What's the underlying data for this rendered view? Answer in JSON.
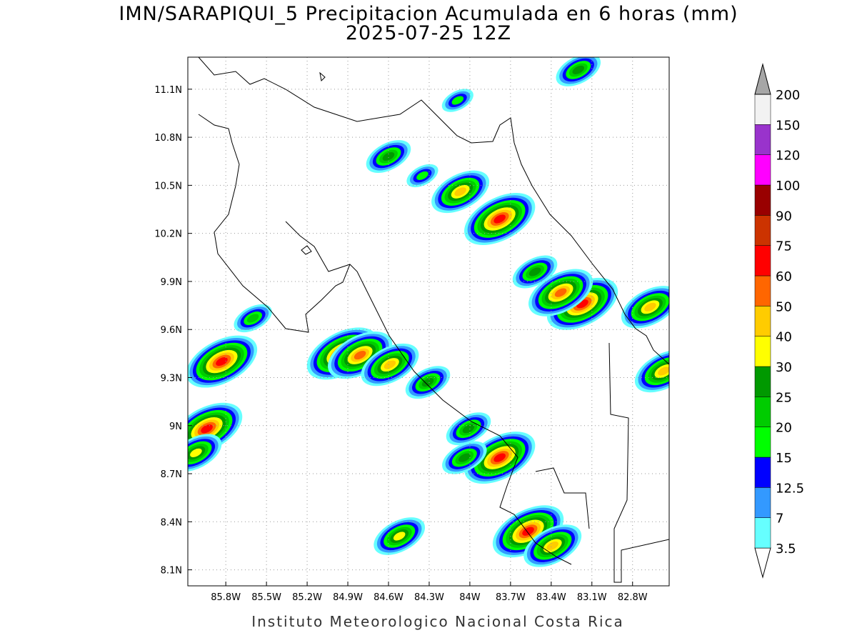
{
  "map": {
    "title": "IMN/SARAPIQUI_5 Precipitacion Acumulada en 6 horas (mm)",
    "subtitle": "2025-07-25 12Z",
    "footer": "Instituto Meteorologico Nacional Costa Rica",
    "lonlim": [
      -86.08,
      -82.53
    ],
    "latlim": [
      8.0,
      11.3
    ],
    "grid": true,
    "lat_ticks": [
      {
        "value": 8.1,
        "label": "8.1N"
      },
      {
        "value": 8.4,
        "label": "8.4N"
      },
      {
        "value": 8.7,
        "label": "8.7N"
      },
      {
        "value": 9.0,
        "label": "9N"
      },
      {
        "value": 9.3,
        "label": "9.3N"
      },
      {
        "value": 9.6,
        "label": "9.6N"
      },
      {
        "value": 9.9,
        "label": "9.9N"
      },
      {
        "value": 10.2,
        "label": "10.2N"
      },
      {
        "value": 10.5,
        "label": "10.5N"
      },
      {
        "value": 10.8,
        "label": "10.8N"
      },
      {
        "value": 11.1,
        "label": "11.1N"
      }
    ],
    "lon_ticks": [
      {
        "value": -85.8,
        "label": "85.8W"
      },
      {
        "value": -85.5,
        "label": "85.5W"
      },
      {
        "value": -85.2,
        "label": "85.2W"
      },
      {
        "value": -84.9,
        "label": "84.9W"
      },
      {
        "value": -84.6,
        "label": "84.6W"
      },
      {
        "value": -84.3,
        "label": "84.3W"
      },
      {
        "value": -84.0,
        "label": "84W"
      },
      {
        "value": -83.7,
        "label": "83.7W"
      },
      {
        "value": -83.4,
        "label": "83.4W"
      },
      {
        "value": -83.1,
        "label": "83.1W"
      },
      {
        "value": -82.8,
        "label": "82.8W"
      }
    ],
    "colorbar": {
      "levels": [
        3.5,
        7,
        12.5,
        15,
        20,
        25,
        30,
        40,
        50,
        60,
        75,
        90,
        100,
        120,
        150,
        200
      ],
      "colors": [
        "#ffffff",
        "#66ffff",
        "#3399ff",
        "#0000ff",
        "#00ff00",
        "#00cc00",
        "#009900",
        "#ffff00",
        "#ffcc00",
        "#ff6600",
        "#ff0000",
        "#cc3300",
        "#990000",
        "#ff00ff",
        "#9933cc",
        "#f2f2f2",
        "#a6a6a6"
      ]
    },
    "precip_cells": [
      {
        "lon": -83.78,
        "lat": 10.29,
        "peak": 60
      },
      {
        "lon": -84.07,
        "lat": 10.46,
        "peak": 40
      },
      {
        "lon": -83.17,
        "lat": 9.76,
        "peak": 60
      },
      {
        "lon": -83.33,
        "lat": 9.83,
        "peak": 50
      },
      {
        "lon": -82.67,
        "lat": 9.74,
        "peak": 40
      },
      {
        "lon": -82.57,
        "lat": 9.34,
        "peak": 40
      },
      {
        "lon": -85.83,
        "lat": 9.4,
        "peak": 60
      },
      {
        "lon": -85.94,
        "lat": 8.98,
        "peak": 60
      },
      {
        "lon": -84.94,
        "lat": 9.45,
        "peak": 60
      },
      {
        "lon": -84.81,
        "lat": 9.44,
        "peak": 50
      },
      {
        "lon": -84.59,
        "lat": 9.38,
        "peak": 40
      },
      {
        "lon": -83.78,
        "lat": 8.8,
        "peak": 60
      },
      {
        "lon": -84.04,
        "lat": 8.8,
        "peak": 25
      },
      {
        "lon": -83.57,
        "lat": 8.34,
        "peak": 60
      },
      {
        "lon": -83.39,
        "lat": 8.25,
        "peak": 40
      },
      {
        "lon": -84.01,
        "lat": 8.98,
        "peak": 25
      },
      {
        "lon": -84.52,
        "lat": 8.31,
        "peak": 30
      },
      {
        "lon": -84.6,
        "lat": 10.68,
        "peak": 25
      },
      {
        "lon": -83.2,
        "lat": 11.22,
        "peak": 25
      },
      {
        "lon": -84.09,
        "lat": 11.03,
        "peak": 15
      },
      {
        "lon": -84.31,
        "lat": 9.27,
        "peak": 25
      },
      {
        "lon": -86.02,
        "lat": 8.83,
        "peak": 30
      },
      {
        "lon": -85.6,
        "lat": 9.67,
        "peak": 20
      },
      {
        "lon": -83.52,
        "lat": 9.96,
        "peak": 25
      },
      {
        "lon": -84.35,
        "lat": 10.56,
        "peak": 15
      }
    ]
  }
}
